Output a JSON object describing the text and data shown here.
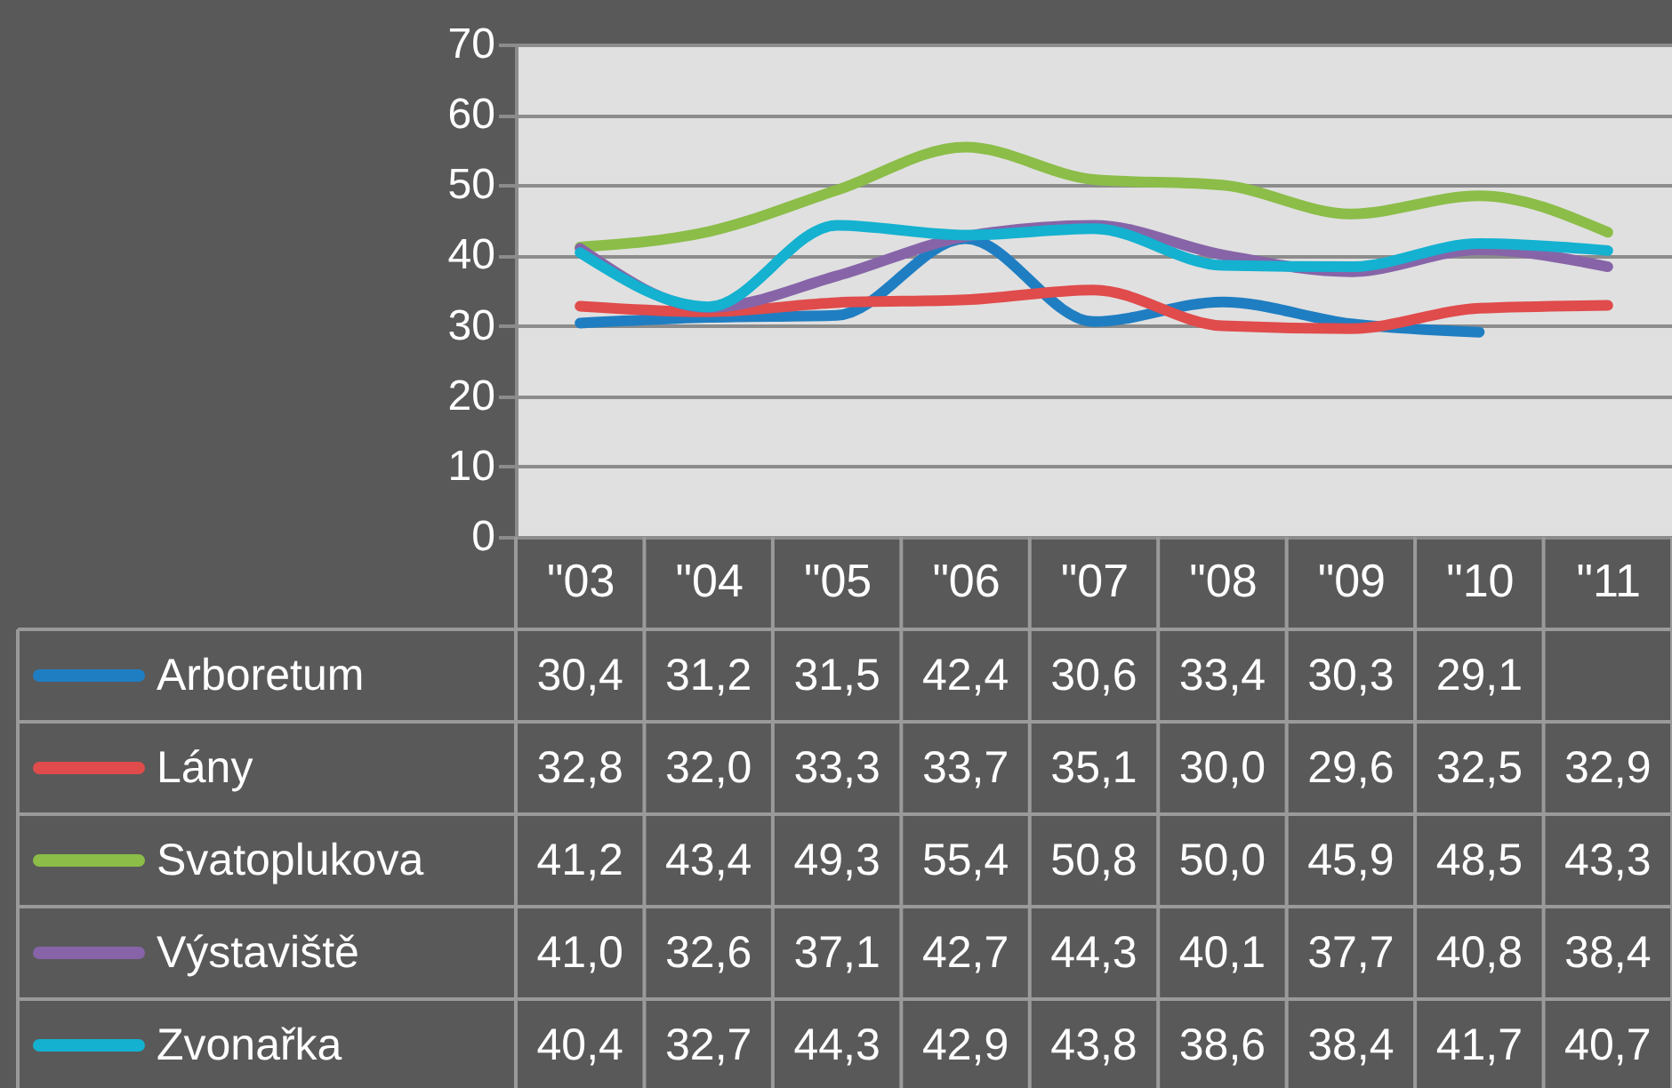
{
  "chart_data": {
    "type": "line",
    "categories": [
      "\"03",
      "\"04",
      "\"05",
      "\"06",
      "\"07",
      "\"08",
      "\"09",
      "\"10",
      "\"11"
    ],
    "series": [
      {
        "name": "Arboretum",
        "color": "#1f7ec2",
        "values": [
          30.4,
          31.2,
          31.5,
          42.4,
          30.6,
          33.4,
          30.3,
          29.1,
          null
        ],
        "value_labels": [
          "30,4",
          "31,2",
          "31,5",
          "42,4",
          "30,6",
          "33,4",
          "30,3",
          "29,1",
          null
        ]
      },
      {
        "name": "Lány",
        "color": "#e04b4b",
        "values": [
          32.8,
          32.0,
          33.3,
          33.7,
          35.1,
          30.0,
          29.6,
          32.5,
          32.9
        ],
        "value_labels": [
          "32,8",
          "32,0",
          "33,3",
          "33,7",
          "35,1",
          "30,0",
          "29,6",
          "32,5",
          "32,9"
        ]
      },
      {
        "name": "Svatoplukova",
        "color": "#8bbd48",
        "values": [
          41.2,
          43.4,
          49.3,
          55.4,
          50.8,
          50.0,
          45.9,
          48.5,
          43.3
        ],
        "value_labels": [
          "41,2",
          "43,4",
          "49,3",
          "55,4",
          "50,8",
          "50,0",
          "45,9",
          "48,5",
          "43,3"
        ]
      },
      {
        "name": "Výstaviště",
        "color": "#8764a8",
        "values": [
          41.0,
          32.6,
          37.1,
          42.7,
          44.3,
          40.1,
          37.7,
          40.8,
          38.4
        ],
        "value_labels": [
          "41,0",
          "32,6",
          "37,1",
          "42,7",
          "44,3",
          "40,1",
          "37,7",
          "40,8",
          "38,4"
        ]
      },
      {
        "name": "Zvonařka",
        "color": "#14b1d0",
        "values": [
          40.4,
          32.7,
          44.3,
          42.9,
          43.8,
          38.6,
          38.4,
          41.7,
          40.7
        ],
        "value_labels": [
          "40,4",
          "32,7",
          "44,3",
          "42,9",
          "43,8",
          "38,6",
          "38,4",
          "41,7",
          "40,7"
        ]
      }
    ],
    "ylim": [
      0,
      70
    ],
    "yticks": [
      0,
      10,
      20,
      30,
      40,
      50,
      60,
      70
    ],
    "grid": "y",
    "legend": "bottom"
  }
}
